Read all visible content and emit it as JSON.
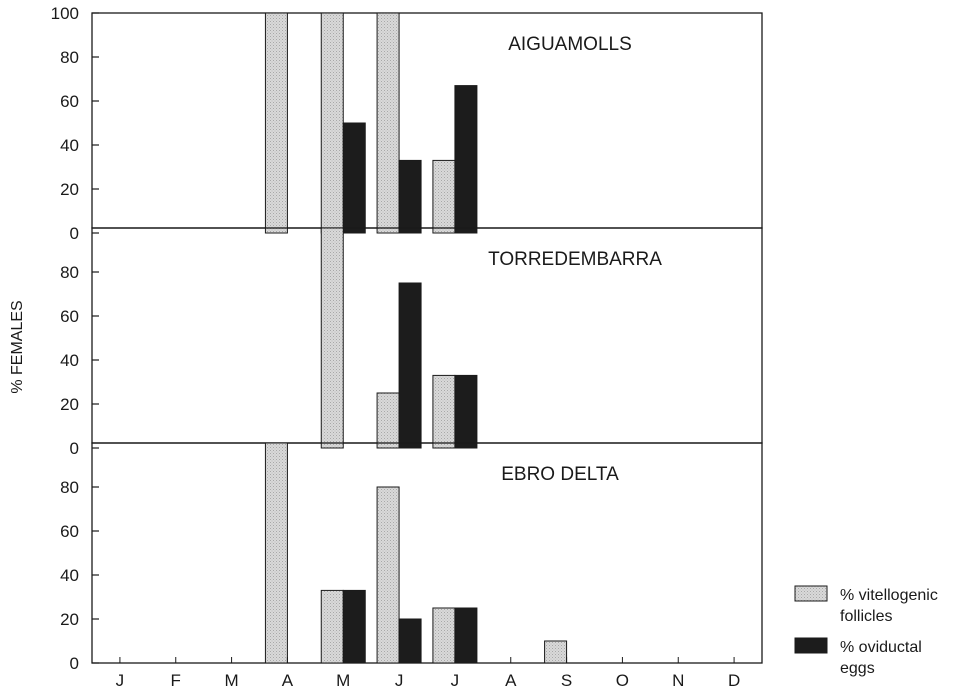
{
  "chart_data": {
    "type": "bar",
    "ylabel": "% FEMALES",
    "categories": [
      "J",
      "F",
      "M",
      "A",
      "M",
      "J",
      "J",
      "A",
      "S",
      "O",
      "N",
      "D"
    ],
    "colors": {
      "vitellogenic": "#d9d9d9",
      "oviductal": "#1c1c1c"
    },
    "legend": {
      "position": "bottom-right",
      "items": [
        {
          "key": "vitellogenic",
          "line1": "% vitellogenic",
          "line2": "follicles"
        },
        {
          "key": "oviductal",
          "line1": "% oviductal",
          "line2": "eggs"
        }
      ]
    },
    "panels": [
      {
        "title": "AIGUAMOLLS",
        "ylim": [
          0,
          100
        ],
        "yticks": [
          "0",
          "20",
          "40",
          "60",
          "80",
          "100"
        ],
        "vitellogenic": [
          null,
          null,
          null,
          100,
          100,
          100,
          33,
          null,
          null,
          null,
          null,
          null
        ],
        "oviductal": [
          null,
          null,
          null,
          null,
          50,
          33,
          67,
          null,
          null,
          null,
          null,
          null
        ]
      },
      {
        "title": "TORREDEMBARRA",
        "ylim": [
          0,
          100
        ],
        "yticks": [
          "0",
          "20",
          "40",
          "60",
          "80"
        ],
        "vitellogenic": [
          null,
          null,
          null,
          null,
          100,
          25,
          33,
          null,
          null,
          null,
          null,
          null
        ],
        "oviductal": [
          null,
          null,
          null,
          null,
          null,
          75,
          33,
          null,
          null,
          null,
          null,
          null
        ]
      },
      {
        "title": "EBRO DELTA",
        "ylim": [
          0,
          100
        ],
        "yticks": [
          "0",
          "20",
          "40",
          "60",
          "80"
        ],
        "vitellogenic": [
          null,
          null,
          null,
          100,
          33,
          80,
          25,
          null,
          10,
          null,
          null,
          null
        ],
        "oviductal": [
          null,
          null,
          null,
          null,
          33,
          20,
          25,
          null,
          null,
          null,
          null,
          null
        ]
      }
    ]
  }
}
